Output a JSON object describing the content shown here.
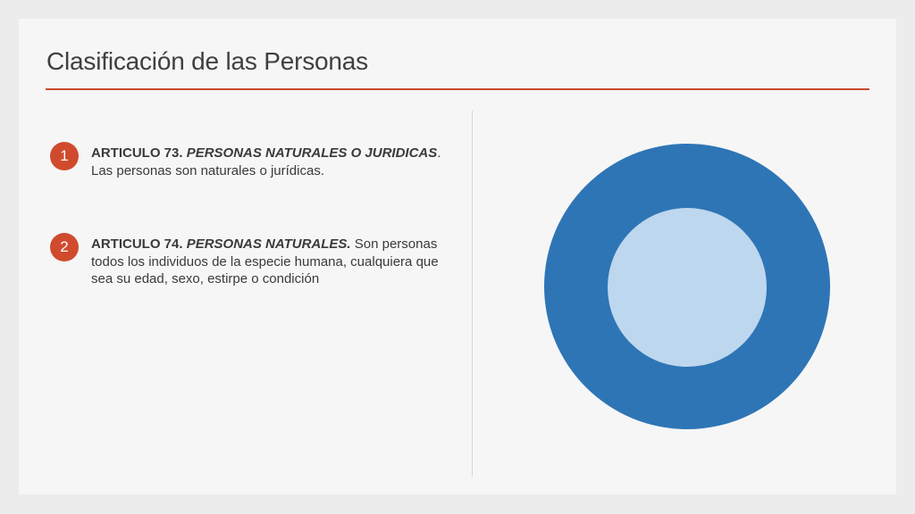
{
  "slide": {
    "title": "Clasificación de las Personas",
    "colors": {
      "accent": "#c84b2c",
      "badge": "#d04b2e",
      "outer_circle": "#2e75b6",
      "inner_circle": "#bdd7ee",
      "background": "#f6f6f6"
    }
  },
  "items": [
    {
      "number": "1",
      "head": "ARTICULO 73. ",
      "head_italic": "PERSONAS NATURALES O JURIDICAS",
      "body": ". Las personas son naturales o jurídicas."
    },
    {
      "number": "2",
      "head": "ARTICULO 74. ",
      "head_italic": "PERSONAS NATURALES.",
      "body": " Son personas todos los individuos de la especie humana, cualquiera que sea su edad, sexo, estirpe o condición"
    }
  ]
}
